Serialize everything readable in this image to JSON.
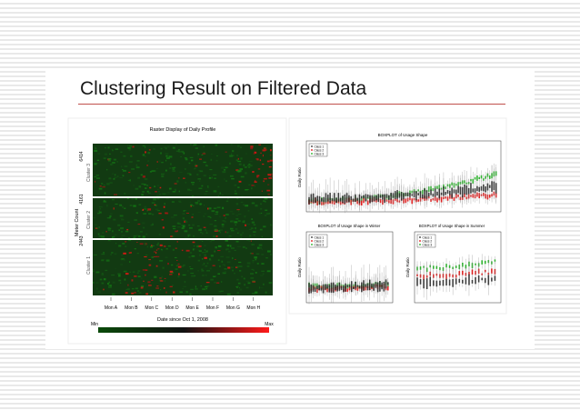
{
  "slide": {
    "title": "Clustering Result on Filtered Data"
  },
  "raster": {
    "title": "Raster Display of Daily Profile",
    "y_label": "Meter Count",
    "y_ticks": [
      "6414",
      "4161",
      "2443"
    ],
    "clusters": [
      "Cluster 3",
      "Cluster 2",
      "Cluster 1"
    ],
    "x_ticks": [
      "Mon A",
      "Mon B",
      "Mon C",
      "Mon D",
      "Mon E",
      "Mon F",
      "Mon G",
      "Mon H"
    ],
    "x_label": "Date since Oct 1, 2008",
    "colorbar_min": "Min",
    "colorbar_max": "Max"
  },
  "boxplots": {
    "overall_title": "BOXPLOT of Usage Shape",
    "winter_title": "BOXPLOT of Usage Shape in Winter",
    "summer_title": "BOXPLOT of Usage Shape in Summer",
    "y_label": "Daily Ratio",
    "legend": [
      "Class 1",
      "Class 2",
      "Class 3"
    ]
  }
}
